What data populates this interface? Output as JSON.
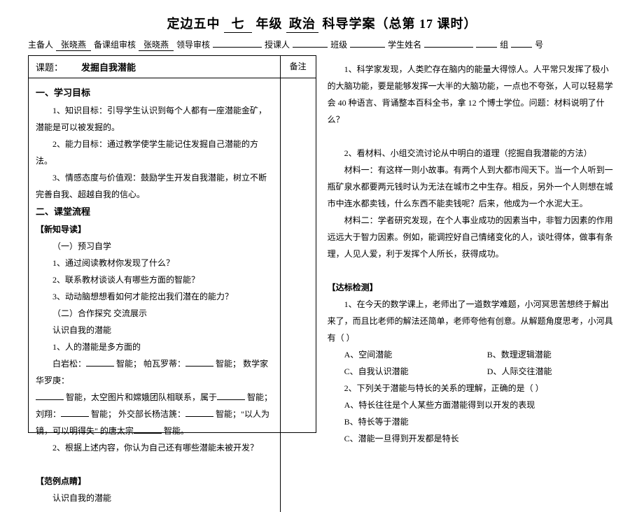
{
  "title": {
    "school": "定边五中",
    "grade": "七",
    "grade_suffix": "年级",
    "subject": "政治",
    "doc_type": "科导学案（总第",
    "period_no": "17",
    "period_suffix": "课时）"
  },
  "meta": {
    "author_label": "主备人",
    "author": "张晓燕",
    "review_label": "备课组审核",
    "reviewer": "张晓燕",
    "leader_label": "领导审核",
    "teacher_label": "授课人",
    "class_label": "班级",
    "name_label": "学生姓名",
    "group_label": "组",
    "no_label": "号"
  },
  "topic": {
    "label": "课题：",
    "title": "发掘自我潜能",
    "note_label": "备注"
  },
  "left": {
    "sec1_title": "一、学习目标",
    "goal1": "1、知识目标：引导学生认识到每个人都有一座潜能金矿，潜能是可以被发掘的。",
    "goal2": "2、能力目标：通过教学使学生能记住发掘自己潜能的方法。",
    "goal3": "3、情感态度与价值观：鼓励学生开发自我潜能，树立不断完善自我、超越自我的信心。",
    "sec2_title": "二、课堂流程",
    "sub1": "【新知导读】",
    "preview": "（一）预习自学",
    "q1": "1、通过阅读教材你发现了什么？",
    "q2": "2、联系教材谈谈人有哪些方面的智能？",
    "q3": "3、动动脑想想看如何才能挖出我们潜在的能力？",
    "coop": "（二）合作探究  交流展示",
    "know": "认识自我的潜能",
    "multi": "1、人的潜能是多方面的",
    "bai_pre": "白岩松：",
    "zhineng": "智能；",
    "pava": "帕瓦罗蒂：",
    "math": "数学家华罗庚：",
    "space_pre": "智能，太空图片和嫦娥团队相联系，属于",
    "liu_pre": "刘翔：",
    "wai": "外交部长杨洁篪：",
    "tang_pre": "智能；\"以人为镜，可以明得失\" 的唐太宗",
    "end": "智能。",
    "q_dev": "2、根据上述内容，你认为自己还有哪些潜能未被开发？",
    "sub2": "【范例点睛】",
    "know2": "认识自我的潜能"
  },
  "right": {
    "p1": "1、科学家发现，人类贮存在脑内的能量大得惊人。人平常只发挥了极小的大脑功能，要是能够发挥一大半的大脑功能，一点也不夸张，人可以轻易学会 40 种语言、背诵整本百科全书，拿 12 个博士学位。问题：材料说明了什么？",
    "p2": "2、看材料、小组交流讨论从中明白的道理（挖掘自我潜能的方法）",
    "m1": "材料一：有这样一则小故事。有两个人到大都市闯天下。当一个人听到一瓶矿泉水都要两元钱时认为无法在城市之中生存。相反，另外一个人则想在城市中连水都卖钱，什么东西不能卖钱呢？后来，他成为一个水泥大王。",
    "m2": "材料二：学者研究发现，在个人事业成功的因素当中，非智力因素的作用远远大于智力因素。例如，能调控好自己情绪变化的人，谈吐得体，做事有条理，人见人爱，利于发挥个人所长，获得成功。",
    "test_title": "【达标检测】",
    "t1": "1、在今天的数学课上，老师出了一道数学难题，小河冥思苦想终于解出来了，而且比老师的解法还简单，老师夸他有创意。从解题角度思考，小河具有（    ）",
    "t1a": "A、空间潜能",
    "t1b": "B、数理逻辑潜能",
    "t1c": "C、自我认识潜能",
    "t1d": "D、人际交往潜能",
    "t2": "2、下列关于潜能与特长的关系的理解，正确的是（    ）",
    "t2a": "A、特长往往是个人某些方面潜能得到以开发的表现",
    "t2b": "B、特长等于潜能",
    "t2c": "C、潜能一旦得到开发都是特长"
  }
}
